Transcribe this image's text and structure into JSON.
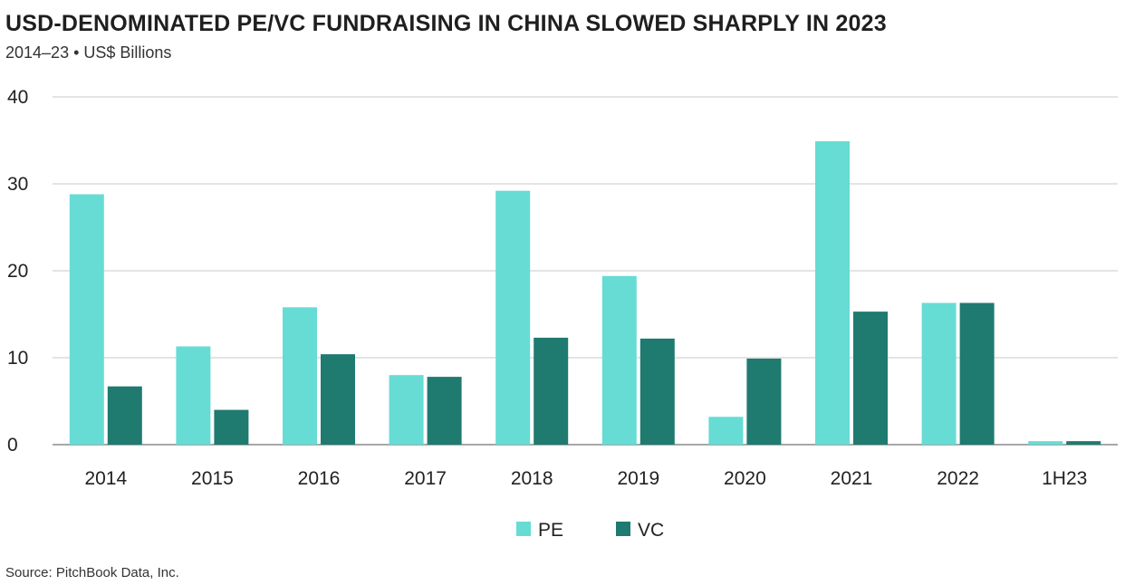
{
  "chart_data": {
    "type": "bar",
    "title": "USD-DENOMINATED PE/VC FUNDRAISING IN CHINA SLOWED SHARPLY IN 2023",
    "subtitle": "2014–23 • US$ Billions",
    "source": "Source: PitchBook Data, Inc.",
    "categories": [
      "2014",
      "2015",
      "2016",
      "2017",
      "2018",
      "2019",
      "2020",
      "2021",
      "2022",
      "1H23"
    ],
    "series": [
      {
        "name": "PE",
        "color": "#66dcd4",
        "values": [
          28.8,
          11.3,
          15.8,
          8.0,
          29.2,
          19.4,
          3.2,
          34.9,
          16.3,
          0.4
        ]
      },
      {
        "name": "VC",
        "color": "#1f7a70",
        "values": [
          6.7,
          4.0,
          10.4,
          7.8,
          12.3,
          12.2,
          9.9,
          15.3,
          16.3,
          0.4
        ]
      }
    ],
    "ylim": [
      0,
      40
    ],
    "yticks": [
      "0",
      "10",
      "20",
      "30",
      "40"
    ],
    "grid": true,
    "legend": "bottom-center"
  }
}
